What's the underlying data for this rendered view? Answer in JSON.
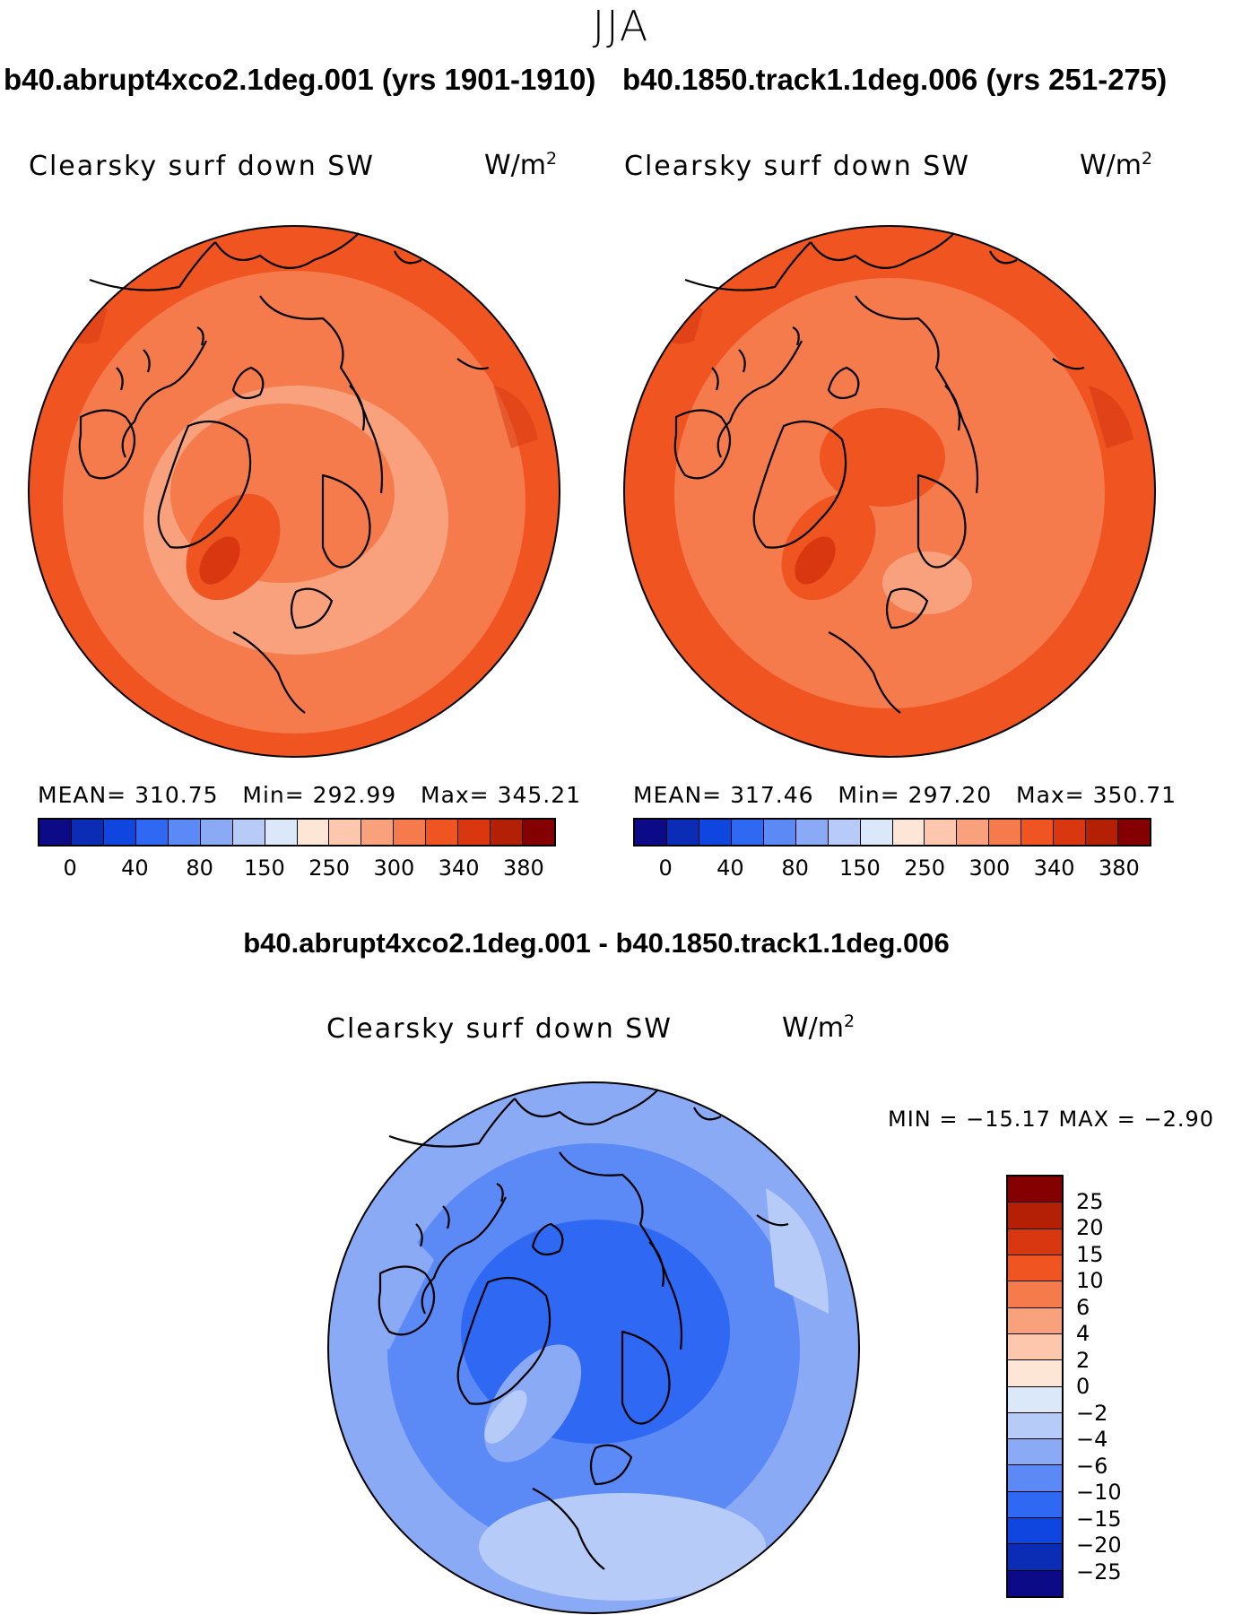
{
  "season": "JJA",
  "panels": {
    "left": {
      "title": "b40.abrupt4xco2.1deg.001 (yrs 1901-1910)",
      "label": "Clearsky surf down SW",
      "units_base": "W/m",
      "units_exp": "2",
      "stats": {
        "mean_label": "MEAN=",
        "mean": "310.75",
        "min_label": "Min=",
        "min": "292.99",
        "max_label": "Max=",
        "max": "345.21"
      }
    },
    "right": {
      "title": "b40.1850.track1.1deg.006 (yrs 251-275)",
      "label": "Clearsky surf down SW",
      "units_base": "W/m",
      "units_exp": "2",
      "stats": {
        "mean_label": "MEAN=",
        "mean": "317.46",
        "min_label": "Min=",
        "min": "297.20",
        "max_label": "Max=",
        "max": "350.71"
      }
    },
    "diff": {
      "title": "b40.abrupt4xco2.1deg.001 - b40.1850.track1.1deg.006",
      "label": "Clearsky surf down SW",
      "units_base": "W/m",
      "units_exp": "2",
      "stats_text": "MIN = −15.17 MAX =  −2.90"
    }
  },
  "chart_data": [
    {
      "type": "heatmap",
      "projection": "north polar stereographic",
      "title": "b40.abrupt4xco2.1deg.001 (yrs 1901-1910)",
      "variable": "Clearsky surf down SW",
      "units": "W/m2",
      "mean": 310.75,
      "min": 292.99,
      "max": 345.21,
      "colorbar_ticks": [
        "0",
        "40",
        "80",
        "150",
        "250",
        "300",
        "340",
        "380"
      ],
      "colorbar_colors": [
        "#0c0a87",
        "#0b2cb5",
        "#1046e0",
        "#2f68f2",
        "#5b8af6",
        "#8aaaf5",
        "#b6cbf7",
        "#dbe8fa",
        "#fde6d6",
        "#fcc7ac",
        "#f9a07c",
        "#f57a4c",
        "#ef5421",
        "#d83710",
        "#b32005",
        "#850000"
      ]
    },
    {
      "type": "heatmap",
      "projection": "north polar stereographic",
      "title": "b40.1850.track1.1deg.006 (yrs 251-275)",
      "variable": "Clearsky surf down SW",
      "units": "W/m2",
      "mean": 317.46,
      "min": 297.2,
      "max": 350.71,
      "colorbar_ticks": [
        "0",
        "40",
        "80",
        "150",
        "250",
        "300",
        "340",
        "380"
      ],
      "colorbar_colors": [
        "#0c0a87",
        "#0b2cb5",
        "#1046e0",
        "#2f68f2",
        "#5b8af6",
        "#8aaaf5",
        "#b6cbf7",
        "#dbe8fa",
        "#fde6d6",
        "#fcc7ac",
        "#f9a07c",
        "#f57a4c",
        "#ef5421",
        "#d83710",
        "#b32005",
        "#850000"
      ]
    },
    {
      "type": "heatmap",
      "projection": "north polar stereographic",
      "title": "b40.abrupt4xco2.1deg.001 - b40.1850.track1.1deg.006",
      "variable": "Clearsky surf down SW",
      "units": "W/m2",
      "min": -15.17,
      "max": -2.9,
      "colorbar_ticks": [
        "25",
        "20",
        "15",
        "10",
        "6",
        "4",
        "2",
        "0",
        "−2",
        "−4",
        "−6",
        "−10",
        "−15",
        "−20",
        "−25"
      ],
      "colorbar_colors": [
        "#850000",
        "#b32005",
        "#d83710",
        "#ef5421",
        "#f57a4c",
        "#f9a07c",
        "#fcc7ac",
        "#fde6d6",
        "#dbe8fa",
        "#b6cbf7",
        "#8aaaf5",
        "#5b8af6",
        "#2f68f2",
        "#1046e0",
        "#0b2cb5",
        "#0c0a87"
      ]
    }
  ]
}
